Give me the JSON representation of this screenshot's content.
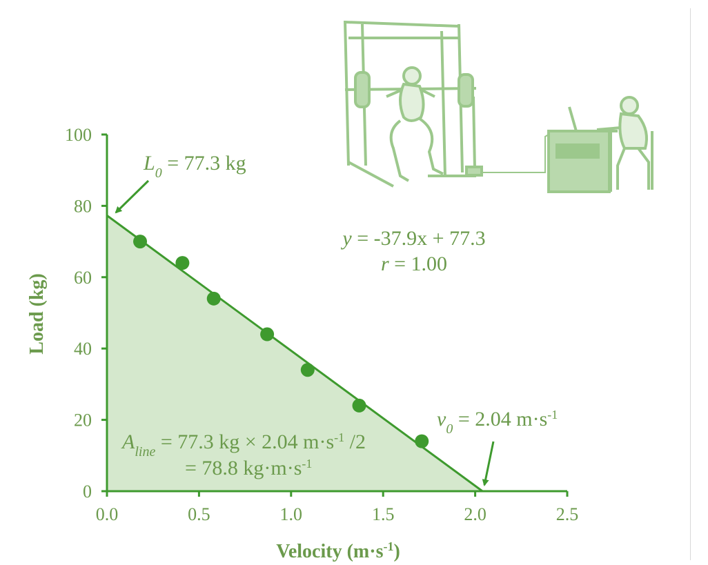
{
  "colors": {
    "primary": "#3e9a2e",
    "label": "#6b9a4c",
    "fill": "#d5e8cd",
    "illustration": "#9cc88c"
  },
  "chart_data": {
    "type": "scatter",
    "xlabel": "Velocity (m·s-1)",
    "ylabel": "Load (kg)",
    "xlim": [
      0,
      2.5
    ],
    "ylim": [
      0,
      100
    ],
    "x_ticks": [
      "0.0",
      "0.5",
      "1.0",
      "1.5",
      "2.0",
      "2.5"
    ],
    "y_ticks": [
      "0",
      "20",
      "40",
      "60",
      "80",
      "100"
    ],
    "points": [
      {
        "x": 0.18,
        "y": 70
      },
      {
        "x": 0.41,
        "y": 64
      },
      {
        "x": 0.58,
        "y": 54
      },
      {
        "x": 0.87,
        "y": 44
      },
      {
        "x": 1.09,
        "y": 34
      },
      {
        "x": 1.37,
        "y": 24
      },
      {
        "x": 1.71,
        "y": 14
      }
    ],
    "regression": {
      "slope": -37.9,
      "intercept": 77.3
    },
    "grid": false,
    "annotations": {
      "equation": "y = -37.9x + 77.3",
      "r": "r = 1.00",
      "l0_sym": "L",
      "l0_sub": "0",
      "l0_val": " = 77.3 kg",
      "v0_sym": "v",
      "v0_sub": "0",
      "v0_val": " = 2.04 m·s-1",
      "aline_sym": "A",
      "aline_sub": "line",
      "aline_val": " = 77.3 kg × 2.04 m·s-1 /2",
      "aline_line2": "= 78.8 kg·m·s-1"
    }
  }
}
